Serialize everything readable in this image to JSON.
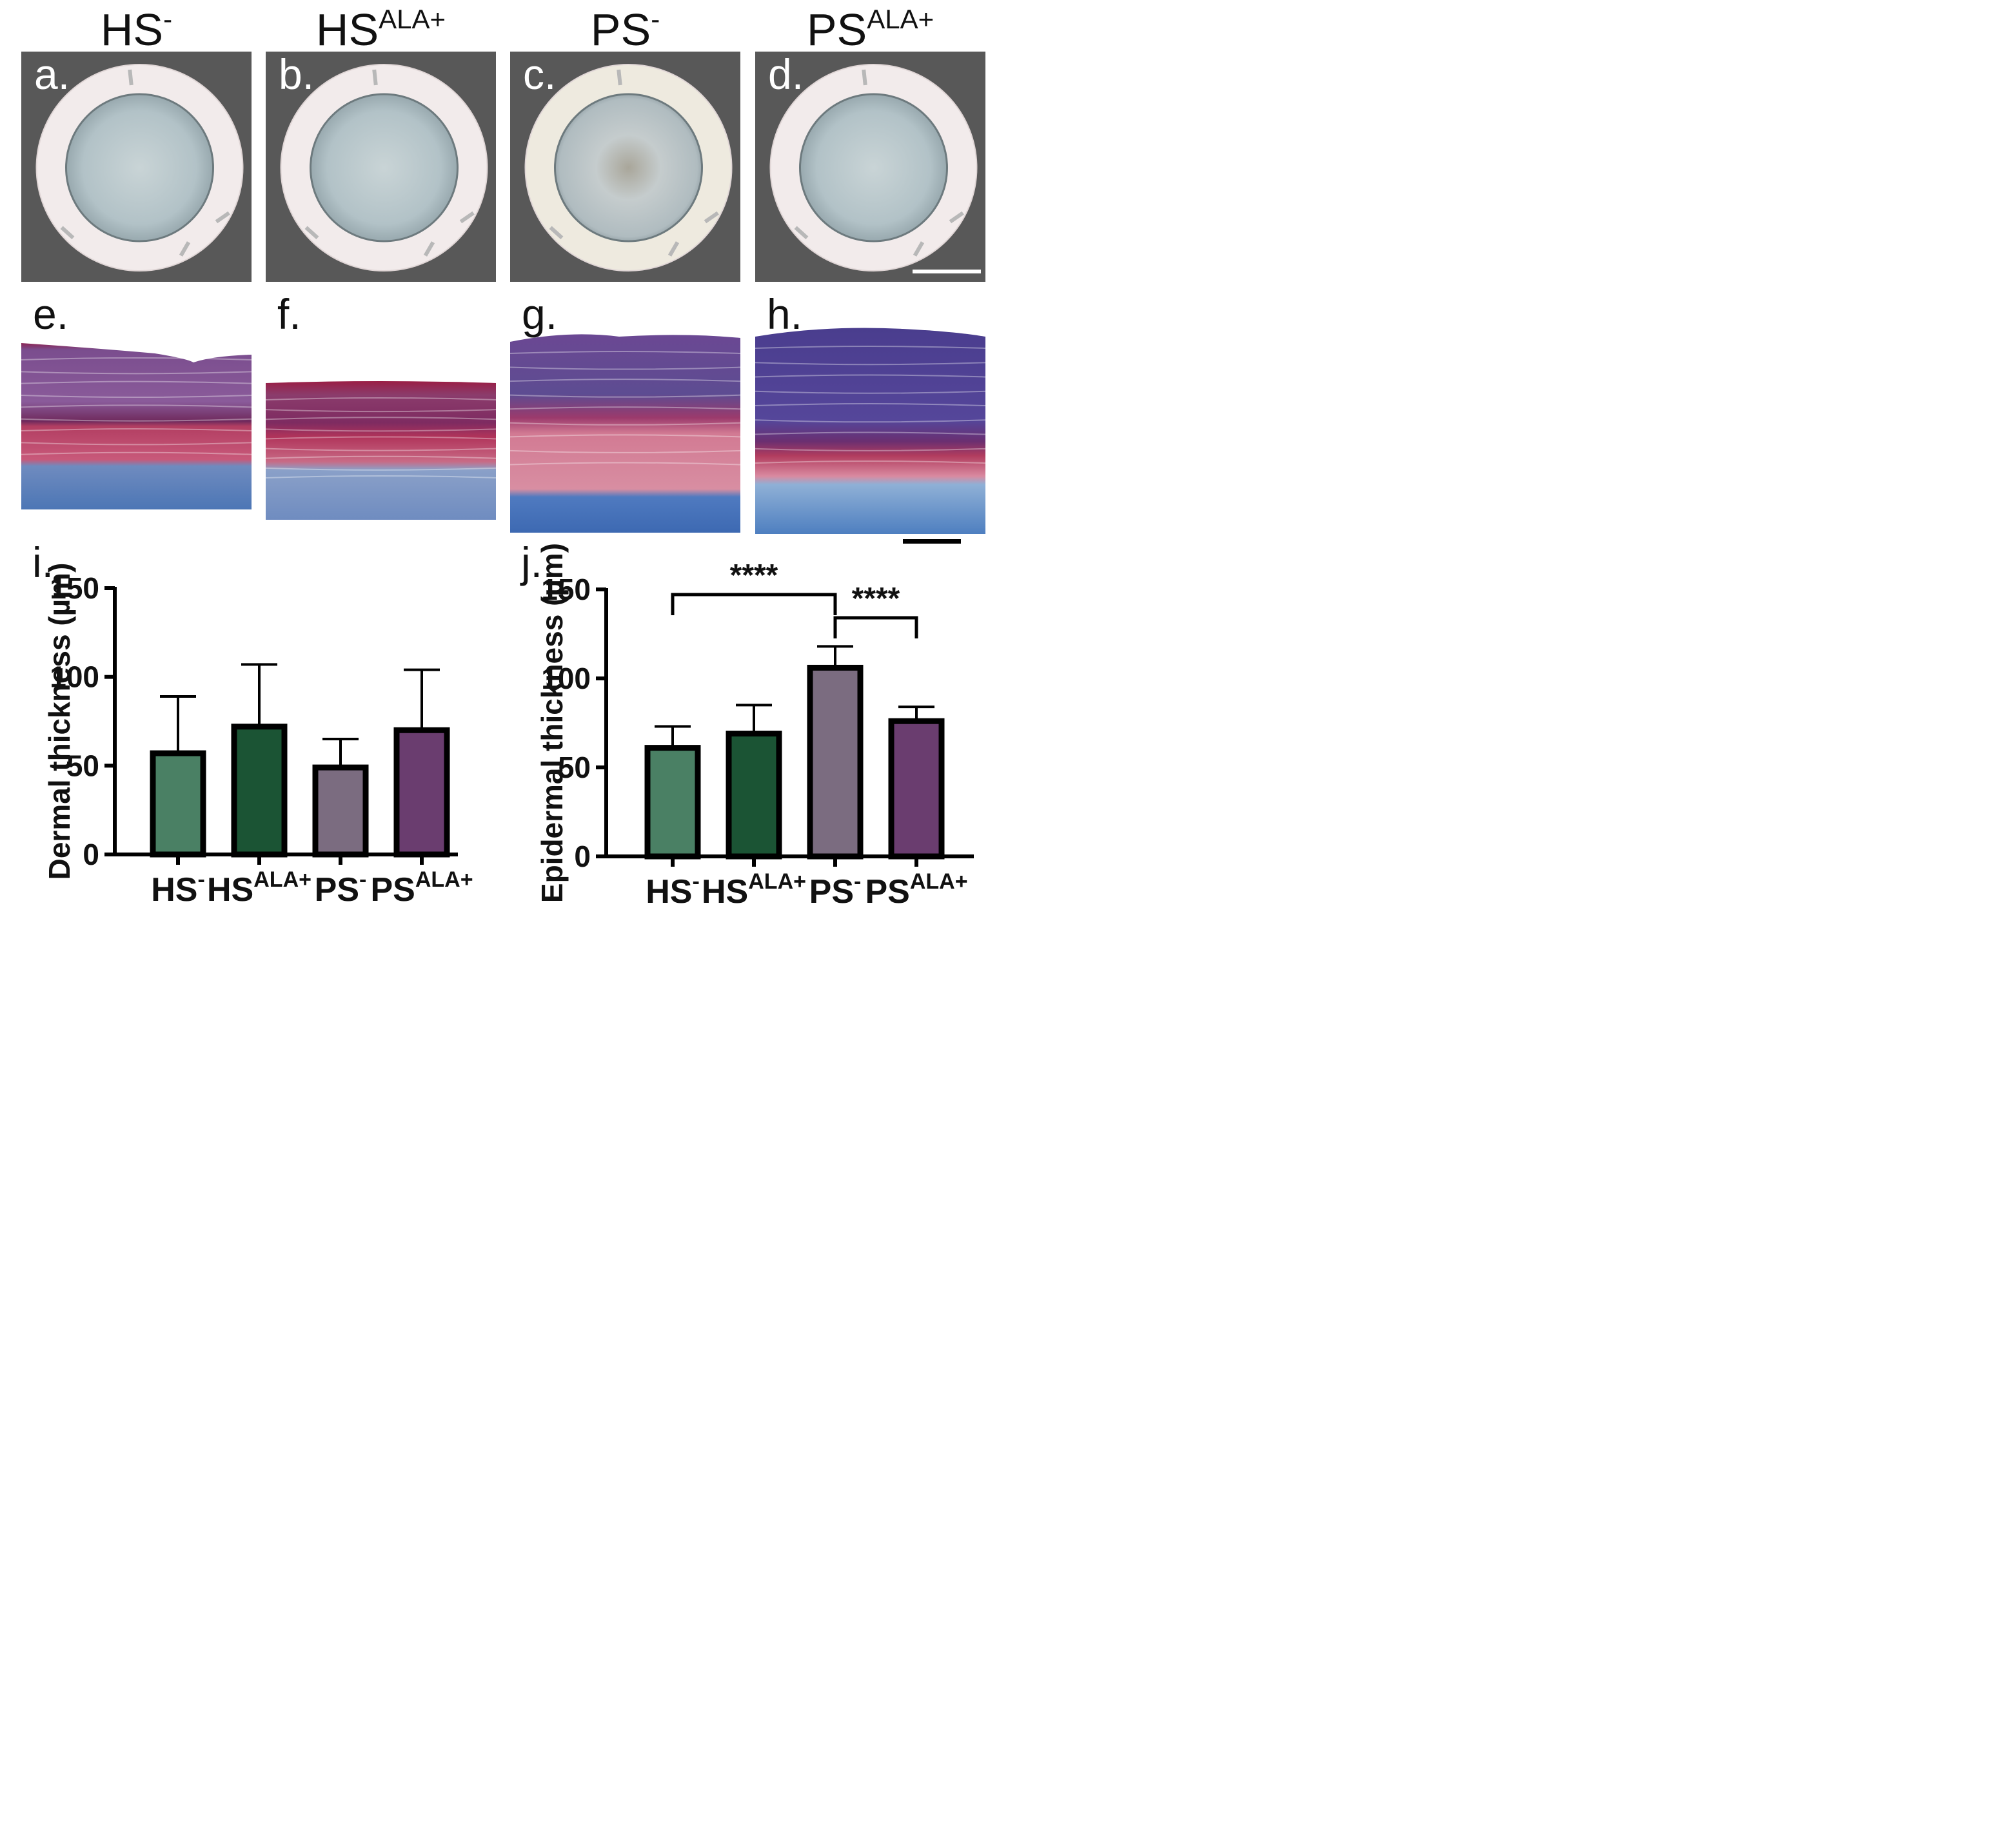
{
  "columns": [
    {
      "base": "HS",
      "sup": "-"
    },
    {
      "base": "HS",
      "sup": "ALA+"
    },
    {
      "base": "PS",
      "sup": "-"
    },
    {
      "base": "PS",
      "sup": "ALA+"
    }
  ],
  "photo_labels": [
    "a.",
    "b.",
    "c.",
    "d."
  ],
  "histology_labels": [
    "e.",
    "f.",
    "g.",
    "h."
  ],
  "colors": {
    "photo_bg": "#585858",
    "ring": "#f2ebeb",
    "bar_hs_minus": "#4a8064",
    "bar_hs_ala": "#1b5434",
    "bar_ps_minus": "#7b6c80",
    "bar_ps_ala": "#6a3d6f"
  },
  "chart_data": [
    {
      "panel_label": "i.",
      "type": "bar",
      "categories": [
        {
          "base": "HS",
          "sup": "-"
        },
        {
          "base": "HS",
          "sup": "ALA+"
        },
        {
          "base": "PS",
          "sup": "-"
        },
        {
          "base": "PS",
          "sup": "ALA+"
        }
      ],
      "values": [
        57,
        72,
        49,
        70
      ],
      "errors": [
        32,
        35,
        16,
        34
      ],
      "ylabel": "Dermal thickness (µm)",
      "ylim": [
        0,
        150
      ],
      "yticks": [
        0,
        50,
        100,
        150
      ],
      "significance": []
    },
    {
      "panel_label": "j.",
      "type": "bar",
      "categories": [
        {
          "base": "HS",
          "sup": "-"
        },
        {
          "base": "HS",
          "sup": "ALA+"
        },
        {
          "base": "PS",
          "sup": "-"
        },
        {
          "base": "PS",
          "sup": "ALA+"
        }
      ],
      "values": [
        61,
        69,
        106,
        76
      ],
      "errors": [
        12,
        16,
        12,
        8
      ],
      "ylabel": "Epidermal thickness (µm)",
      "ylim": [
        0,
        150
      ],
      "yticks": [
        0,
        50,
        100,
        150
      ],
      "significance": [
        {
          "from": 0,
          "to": 2,
          "label": "****"
        },
        {
          "from": 2,
          "to": 3,
          "label": "****"
        }
      ]
    }
  ]
}
